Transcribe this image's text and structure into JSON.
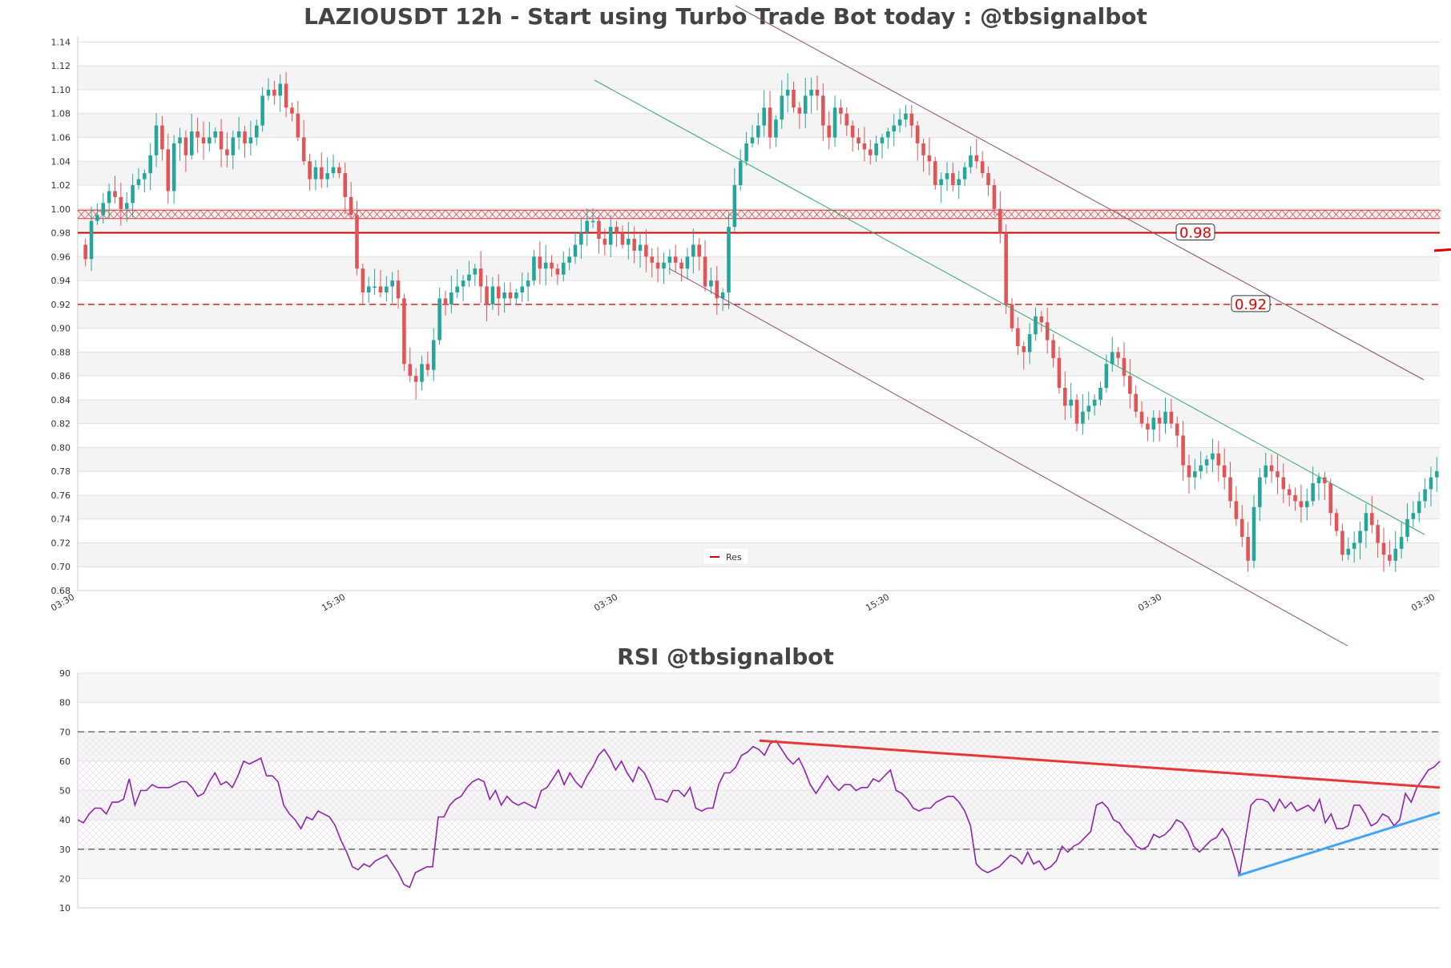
{
  "chart_data": [
    {
      "type": "candlestick",
      "title": "LAZIOUSDT 12h - Start using Turbo Trade Bot today : @tbsignalbot",
      "ylim": [
        0.68,
        1.145
      ],
      "yticks": [
        "0.68",
        "0.70",
        "0.72",
        "0.74",
        "0.76",
        "0.78",
        "0.80",
        "0.82",
        "0.84",
        "0.86",
        "0.88",
        "0.90",
        "0.92",
        "0.94",
        "0.96",
        "0.98",
        "1.00",
        "1.02",
        "1.04",
        "1.06",
        "1.08",
        "1.10",
        "1.12",
        "1.14"
      ],
      "xticks": [
        "03:30",
        "15:30",
        "03:30",
        "15:30",
        "03:30",
        "03:30"
      ],
      "levels": [
        {
          "value": 0.98,
          "label": "0.98",
          "style": "solid"
        },
        {
          "value": 0.92,
          "label": "0.92",
          "style": "dashed"
        }
      ],
      "zone": [
        0.992,
        0.999
      ],
      "legend": {
        "label": "Res",
        "position": "bottom-center"
      },
      "closes": [
        0.958,
        0.99,
        0.995,
        1.005,
        1.015,
        1.01,
        1.0,
        1.005,
        1.02,
        1.025,
        1.03,
        1.045,
        1.07,
        1.05,
        1.015,
        1.055,
        1.06,
        1.045,
        1.065,
        1.06,
        1.055,
        1.06,
        1.065,
        1.05,
        1.045,
        1.06,
        1.065,
        1.055,
        1.06,
        1.07,
        1.095,
        1.1,
        1.095,
        1.105,
        1.085,
        1.08,
        1.06,
        1.04,
        1.025,
        1.035,
        1.025,
        1.03,
        1.035,
        1.03,
        1.01,
        0.995,
        0.95,
        0.93,
        0.935,
        0.935,
        0.93,
        0.935,
        0.94,
        0.925,
        0.87,
        0.86,
        0.855,
        0.87,
        0.865,
        0.89,
        0.925,
        0.92,
        0.93,
        0.935,
        0.94,
        0.945,
        0.95,
        0.935,
        0.92,
        0.935,
        0.925,
        0.93,
        0.925,
        0.93,
        0.935,
        0.94,
        0.96,
        0.95,
        0.955,
        0.95,
        0.945,
        0.955,
        0.96,
        0.97,
        0.98,
        0.99,
        0.99,
        0.975,
        0.97,
        0.985,
        0.98,
        0.97,
        0.975,
        0.965,
        0.97,
        0.96,
        0.955,
        0.95,
        0.955,
        0.96,
        0.955,
        0.95,
        0.96,
        0.97,
        0.96,
        0.935,
        0.94,
        0.925,
        0.93,
        0.985,
        1.02,
        1.04,
        1.055,
        1.06,
        1.07,
        1.085,
        1.06,
        1.075,
        1.095,
        1.1,
        1.085,
        1.08,
        1.095,
        1.1,
        1.095,
        1.07,
        1.06,
        1.085,
        1.08,
        1.07,
        1.06,
        1.055,
        1.05,
        1.045,
        1.055,
        1.06,
        1.065,
        1.07,
        1.075,
        1.08,
        1.07,
        1.055,
        1.045,
        1.04,
        1.02,
        1.025,
        1.03,
        1.02,
        1.025,
        1.035,
        1.045,
        1.04,
        1.03,
        1.02,
        1.0,
        0.98,
        0.92,
        0.9,
        0.885,
        0.88,
        0.895,
        0.91,
        0.905,
        0.89,
        0.875,
        0.85,
        0.835,
        0.84,
        0.82,
        0.83,
        0.835,
        0.84,
        0.85,
        0.87,
        0.88,
        0.875,
        0.86,
        0.845,
        0.83,
        0.82,
        0.815,
        0.825,
        0.82,
        0.83,
        0.82,
        0.81,
        0.785,
        0.775,
        0.78,
        0.785,
        0.79,
        0.795,
        0.785,
        0.775,
        0.755,
        0.74,
        0.725,
        0.705,
        0.75,
        0.775,
        0.785,
        0.78,
        0.775,
        0.765,
        0.76,
        0.755,
        0.75,
        0.755,
        0.77,
        0.775,
        0.77,
        0.745,
        0.73,
        0.71,
        0.715,
        0.72,
        0.73,
        0.745,
        0.735,
        0.72,
        0.71,
        0.705,
        0.715,
        0.725,
        0.74,
        0.745,
        0.755,
        0.765,
        0.775,
        0.78
      ]
    },
    {
      "type": "line",
      "title": "RSI @tbsignalbot",
      "ylim": [
        10,
        90
      ],
      "yticks": [
        "10",
        "20",
        "30",
        "40",
        "50",
        "60",
        "70",
        "80",
        "90"
      ],
      "bands": [
        30,
        70
      ],
      "values": [
        40,
        39,
        42,
        44,
        44,
        42,
        46,
        46,
        47,
        54,
        45,
        50,
        50,
        52,
        51,
        51,
        51,
        52,
        53,
        53,
        51,
        48,
        49,
        53,
        56,
        52,
        53,
        51,
        55,
        60,
        59,
        60,
        61,
        55,
        55,
        53,
        45,
        42,
        40,
        37,
        41,
        40,
        43,
        42,
        41,
        38,
        33,
        29,
        24,
        23,
        25,
        24,
        26,
        27,
        28,
        25,
        22,
        18,
        17,
        22,
        23,
        24,
        24,
        41,
        41,
        45,
        47,
        48,
        51,
        53,
        54,
        53,
        47,
        50,
        45,
        48,
        46,
        45,
        46,
        45,
        44,
        50,
        51,
        54,
        57,
        52,
        56,
        53,
        51,
        55,
        58,
        62,
        64,
        61,
        57,
        60,
        56,
        53,
        58,
        56,
        52,
        47,
        47,
        46,
        50,
        50,
        48,
        51,
        44,
        43,
        44,
        44,
        52,
        56,
        56,
        58,
        62,
        63,
        65,
        64,
        62,
        66,
        67,
        64,
        61,
        59,
        61,
        57,
        52,
        49,
        52,
        55,
        52,
        50,
        52,
        52,
        50,
        51,
        51,
        54,
        53,
        55,
        57,
        50,
        49,
        47,
        44,
        43,
        44,
        44,
        46,
        47,
        48,
        48,
        46,
        43,
        38,
        25,
        23,
        22,
        23,
        24,
        26,
        28,
        27,
        25,
        29,
        25,
        26,
        23,
        24,
        26,
        31,
        29,
        31,
        32,
        34,
        36,
        45,
        46,
        44,
        40,
        39,
        36,
        34,
        31,
        30,
        31,
        35,
        34,
        35,
        37,
        40,
        39,
        36,
        31,
        29,
        31,
        33,
        34,
        37,
        34,
        28,
        21,
        33,
        45,
        47,
        47,
        46,
        43,
        47,
        44,
        46,
        43,
        44,
        45,
        43,
        47,
        39,
        42,
        37,
        37,
        38,
        45,
        45,
        42,
        38,
        39,
        42,
        41,
        38,
        40,
        49,
        46,
        51,
        54,
        57,
        58,
        60
      ]
    }
  ]
}
